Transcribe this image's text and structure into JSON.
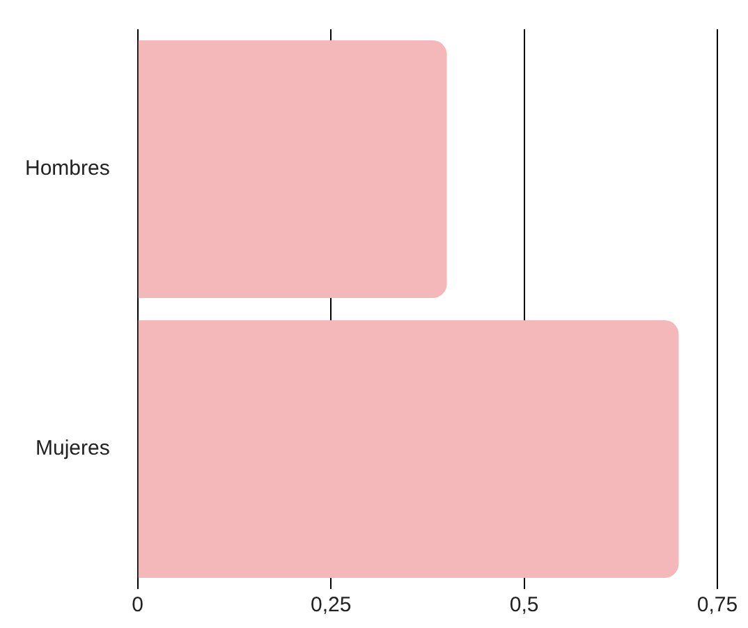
{
  "chart_data": {
    "type": "bar",
    "orientation": "horizontal",
    "categories": [
      "Hombres",
      "Mujeres"
    ],
    "values": [
      0.4,
      0.7
    ],
    "color": "#f4b8bb",
    "xlim": [
      0,
      0.75
    ],
    "xticks": [
      {
        "value": 0,
        "label": "0"
      },
      {
        "value": 0.25,
        "label": "0,25"
      },
      {
        "value": 0.5,
        "label": "0,5"
      },
      {
        "value": 0.75,
        "label": "0,75"
      }
    ],
    "grid": "x"
  }
}
